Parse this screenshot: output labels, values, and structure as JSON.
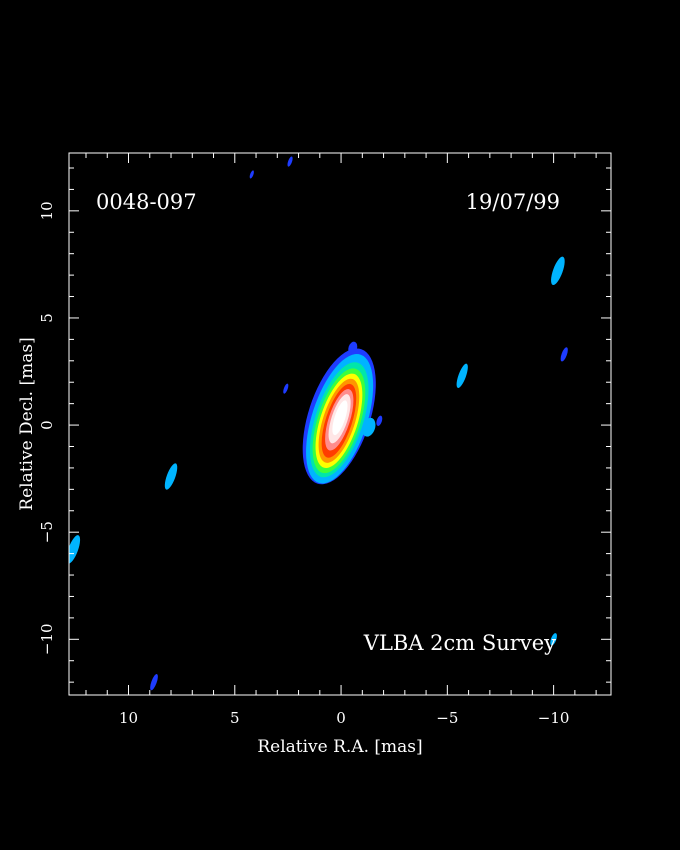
{
  "chart_data": {
    "type": "heatmap",
    "source": "0048-097",
    "date": "19/07/99",
    "survey": "VLBA 2cm Survey",
    "xlabel": "Relative R.A. [mas]",
    "ylabel": "Relative Decl. [mas]",
    "xlim": [
      12.8,
      -12.7
    ],
    "ylim": [
      -12.6,
      12.7
    ],
    "x_ticks": [
      10,
      5,
      0,
      -5,
      -10
    ],
    "y_ticks": [
      10,
      5,
      0,
      -5,
      -10
    ],
    "x_tick_labels": [
      "10",
      "5",
      "0",
      "−5",
      "−10"
    ],
    "y_tick_labels": [
      "10",
      "5",
      "0",
      "−5",
      "−10"
    ],
    "colors": {
      "background": "#000000",
      "frame": "#ffffff",
      "text": "#ffffff",
      "level_1": "#1e3cff",
      "level_2": "#00b4ff",
      "level_3": "#00e6aa",
      "level_4": "#3cff3c",
      "level_5": "#ffff00",
      "level_6": "#ff9600",
      "level_7": "#ff3c00",
      "level_8": "#ff8c8c",
      "level_9": "#ffe6e6",
      "level_10": "#ffffff"
    },
    "core": {
      "ra": 0.1,
      "dec": 0.2,
      "levels": [
        {
          "color": "#1e3cff",
          "rx": 1.45,
          "ry": 3.3,
          "dx": 0.05,
          "dy": 0.2
        },
        {
          "color": "#00b4ff",
          "rx": 1.3,
          "ry": 3.15,
          "dx": 0.0,
          "dy": 0.1
        },
        {
          "color": "#00e6aa",
          "rx": 1.12,
          "ry": 2.8,
          "dx": 0.0,
          "dy": 0.05
        },
        {
          "color": "#3cff3c",
          "rx": 1.0,
          "ry": 2.55,
          "dx": 0.0,
          "dy": 0.0
        },
        {
          "color": "#ffff00",
          "rx": 0.88,
          "ry": 2.3,
          "dx": 0.0,
          "dy": 0.0
        },
        {
          "color": "#ff9600",
          "rx": 0.75,
          "ry": 2.05,
          "dx": 0.0,
          "dy": 0.0
        },
        {
          "color": "#ff3c00",
          "rx": 0.62,
          "ry": 1.8,
          "dx": 0.0,
          "dy": 0.0
        },
        {
          "color": "#ff8c8c",
          "rx": 0.5,
          "ry": 1.5,
          "dx": 0.0,
          "dy": 0.05
        },
        {
          "color": "#ffe6e6",
          "rx": 0.38,
          "ry": 1.2,
          "dx": 0.0,
          "dy": 0.1
        },
        {
          "color": "#ffffff",
          "rx": 0.25,
          "ry": 0.85,
          "dx": 0.0,
          "dy": 0.15
        }
      ],
      "features": [
        {
          "color": "#00b4ff",
          "ra": -1.3,
          "dec": -0.1,
          "rx": 0.3,
          "ry": 0.45
        },
        {
          "color": "#1e3cff",
          "ra": -1.8,
          "dec": 0.2,
          "rx": 0.12,
          "ry": 0.25
        },
        {
          "color": "#1e3cff",
          "ra": -0.55,
          "dec": 3.6,
          "rx": 0.2,
          "ry": 0.3
        }
      ]
    },
    "noise_blobs": [
      {
        "ra": 8.0,
        "dec": -2.4,
        "color": "#00b4ff",
        "length": 1.3,
        "width": 0.4
      },
      {
        "ra": 12.6,
        "dec": -5.8,
        "color": "#00b4ff",
        "length": 1.4,
        "width": 0.45
      },
      {
        "ra": -5.7,
        "dec": 2.3,
        "color": "#00b4ff",
        "length": 1.2,
        "width": 0.35
      },
      {
        "ra": -10.2,
        "dec": 7.2,
        "color": "#00b4ff",
        "length": 1.4,
        "width": 0.45
      },
      {
        "ra": -10.5,
        "dec": 3.3,
        "color": "#1e3cff",
        "length": 0.7,
        "width": 0.25
      },
      {
        "ra": -10.0,
        "dec": -10.0,
        "color": "#00b4ff",
        "length": 0.6,
        "width": 0.25
      },
      {
        "ra": 8.8,
        "dec": -12.0,
        "color": "#1e3cff",
        "length": 0.8,
        "width": 0.25
      },
      {
        "ra": 2.6,
        "dec": 1.7,
        "color": "#1e3cff",
        "length": 0.5,
        "width": 0.18
      },
      {
        "ra": 2.4,
        "dec": 12.3,
        "color": "#1e3cff",
        "length": 0.5,
        "width": 0.18
      },
      {
        "ra": 4.2,
        "dec": 11.7,
        "color": "#1e3cff",
        "length": 0.4,
        "width": 0.15
      }
    ]
  }
}
